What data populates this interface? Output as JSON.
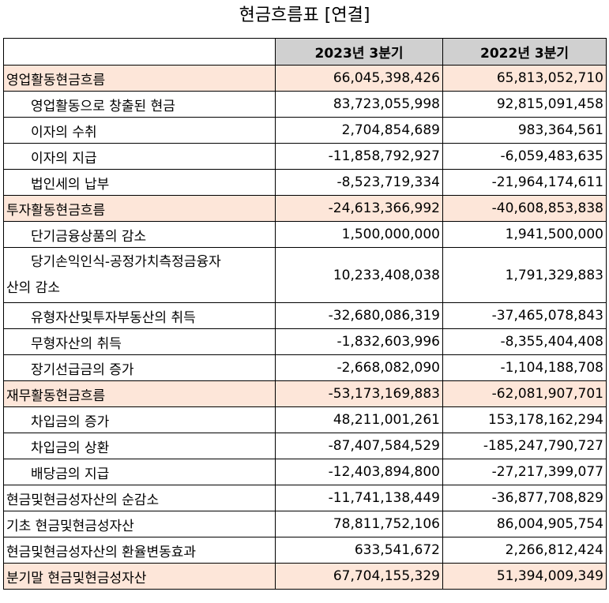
{
  "title": "현금흐름표 [연결]",
  "columns": [
    "",
    "2023년 3분기",
    "2022년 3분기"
  ],
  "rows": [
    {
      "label": "영업활동현금흐름",
      "v1": "66,045,398,426",
      "v2": "65,813,052,710"
    },
    {
      "label": "영업활동으로 창출된 현금",
      "v1": "83,723,055,998",
      "v2": "92,815,091,458"
    },
    {
      "label": "이자의 수취",
      "v1": "2,704,854,689",
      "v2": "983,364,561"
    },
    {
      "label": "이자의 지급",
      "v1": "-11,858,792,927",
      "v2": "-6,059,483,635"
    },
    {
      "label": "법인세의 납부",
      "v1": "-8,523,719,334",
      "v2": "-21,964,174,611"
    },
    {
      "label": "투자활동현금흐름",
      "v1": "-24,613,366,992",
      "v2": "-40,608,853,838"
    },
    {
      "label": "단기금융상품의 감소",
      "v1": "1,500,000,000",
      "v2": "1,941,500,000"
    },
    {
      "label_line1": "당기손익인식-공정가치측정금융자",
      "label_line2": "산의 감소",
      "v1": "10,233,408,038",
      "v2": "1,791,329,883"
    },
    {
      "label": "유형자산및투자부동산의 취득",
      "v1": "-32,680,086,319",
      "v2": "-37,465,078,843"
    },
    {
      "label": "무형자산의 취득",
      "v1": "-1,832,603,996",
      "v2": "-8,355,404,408"
    },
    {
      "label": "장기선급금의 증가",
      "v1": "-2,668,082,090",
      "v2": "-1,104,188,708"
    },
    {
      "label": "재무활동현금흐름",
      "v1": "-53,173,169,883",
      "v2": "-62,081,907,701"
    },
    {
      "label": "차입금의 증가",
      "v1": "48,211,001,261",
      "v2": "153,178,162,294"
    },
    {
      "label": "차입금의 상환",
      "v1": "-87,407,584,529",
      "v2": "-185,247,790,727"
    },
    {
      "label": "배당금의 지급",
      "v1": "-12,403,894,800",
      "v2": "-27,217,399,077"
    },
    {
      "label": "현금및현금성자산의 순감소",
      "v1": "-11,741,138,449",
      "v2": "-36,877,708,829"
    },
    {
      "label": "기초 현금및현금성자산",
      "v1": "78,811,752,106",
      "v2": "86,004,905,754"
    },
    {
      "label": "현금및현금성자산의 환율변동효과",
      "v1": "633,541,672",
      "v2": "2,266,812,424"
    },
    {
      "label": "분기말 현금및현금성자산",
      "v1": "67,704,155,329",
      "v2": "51,394,009,349"
    }
  ],
  "colors": {
    "highlight": "#fde6d9",
    "header": "#d0d0d0"
  }
}
